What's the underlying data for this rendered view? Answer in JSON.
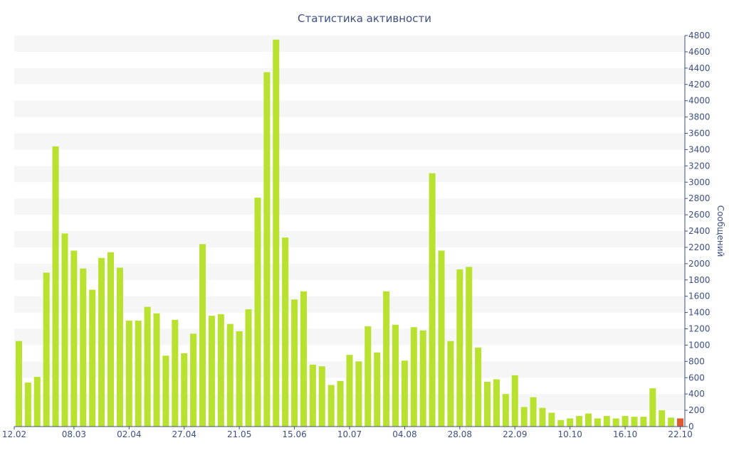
{
  "chart_data": {
    "type": "bar",
    "title": "Статистика активности",
    "xlabel": "",
    "ylabel": "Сообщений",
    "ylim": [
      0,
      4800
    ],
    "y_ticks": [
      0,
      200,
      400,
      600,
      800,
      1000,
      1200,
      1400,
      1600,
      1800,
      2000,
      2200,
      2400,
      2600,
      2800,
      3000,
      3200,
      3400,
      3600,
      3800,
      4000,
      4200,
      4400,
      4600,
      4800
    ],
    "y_axis_position": "right",
    "grid": "alternating horizontal bands",
    "x_tick_labels": [
      {
        "label": "12.02",
        "index": 0
      },
      {
        "label": "08.03",
        "index": 6
      },
      {
        "label": "02.04",
        "index": 12
      },
      {
        "label": "27.04",
        "index": 18
      },
      {
        "label": "21.05",
        "index": 24
      },
      {
        "label": "15.06",
        "index": 30
      },
      {
        "label": "10.07",
        "index": 36
      },
      {
        "label": "04.08",
        "index": 42
      },
      {
        "label": "28.08",
        "index": 48
      },
      {
        "label": "22.09",
        "index": 54
      },
      {
        "label": "10.10",
        "index": 60
      },
      {
        "label": "16.10",
        "index": 66
      },
      {
        "label": "22.10",
        "index": 72
      }
    ],
    "values": [
      1050,
      540,
      610,
      1890,
      3440,
      2370,
      2160,
      1940,
      1680,
      2070,
      2140,
      1950,
      1300,
      1300,
      1470,
      1390,
      870,
      1310,
      900,
      1140,
      2240,
      1360,
      1380,
      1260,
      1170,
      1440,
      2810,
      4350,
      4750,
      2320,
      1560,
      1660,
      760,
      740,
      510,
      560,
      880,
      800,
      1230,
      910,
      1660,
      1250,
      810,
      1220,
      1180,
      3110,
      2160,
      1050,
      1930,
      1960,
      970,
      550,
      580,
      400,
      630,
      240,
      360,
      230,
      170,
      80,
      100,
      130,
      160,
      100,
      130,
      100,
      130,
      120,
      120,
      470,
      200,
      110,
      100
    ],
    "highlight_index": 72,
    "colors": {
      "bar": "#b8e22f",
      "highlight": "#e05a30",
      "band": "#f6f6f6",
      "axis": "#3d4f86",
      "text": "#3d4f86"
    }
  }
}
